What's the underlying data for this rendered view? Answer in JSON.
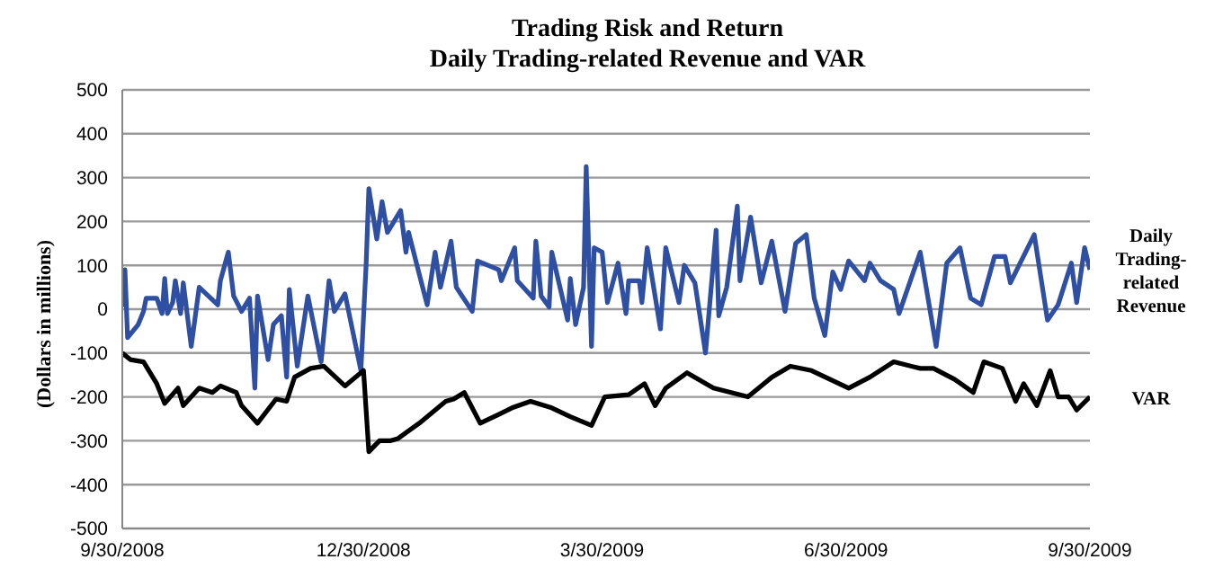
{
  "chart_data": {
    "type": "line",
    "title": "Trading Risk and Return",
    "subtitle": "Daily Trading-related Revenue and VAR",
    "ylabel": "(Dollars in millions)",
    "ylim": [
      -500,
      500
    ],
    "yticks": [
      -500,
      -400,
      -300,
      -200,
      -100,
      0,
      100,
      200,
      300,
      400,
      500
    ],
    "xlim": [
      "2008-09-30",
      "2009-09-30"
    ],
    "xticks": [
      {
        "value": "2008-09-30",
        "label": "9/30/2008"
      },
      {
        "value": "2008-12-30",
        "label": "12/30/2008"
      },
      {
        "value": "2009-03-30",
        "label": "3/30/2009"
      },
      {
        "value": "2009-06-30",
        "label": "6/30/2009"
      },
      {
        "value": "2009-09-30",
        "label": "9/30/2009"
      }
    ],
    "grid": "y",
    "marker": "none",
    "line_style": "solid",
    "series": [
      {
        "name": "Daily Trading-related Revenue",
        "color": "#2f4fa3",
        "x": [
          "2008-09-30",
          "2008-10-01",
          "2008-10-02",
          "2008-10-06",
          "2008-10-08",
          "2008-10-09",
          "2008-10-13",
          "2008-10-15",
          "2008-10-16",
          "2008-10-17",
          "2008-10-19",
          "2008-10-20",
          "2008-10-22",
          "2008-10-23",
          "2008-10-26",
          "2008-10-29",
          "2008-11-05",
          "2008-11-06",
          "2008-11-09",
          "2008-11-11",
          "2008-11-14",
          "2008-11-17",
          "2008-11-19",
          "2008-11-20",
          "2008-11-24",
          "2008-11-26",
          "2008-11-29",
          "2008-12-01",
          "2008-12-02",
          "2008-12-05",
          "2008-12-09",
          "2008-12-14",
          "2008-12-17",
          "2008-12-19",
          "2008-12-23",
          "2008-12-29",
          "2008-12-31",
          "2009-01-01",
          "2009-01-04",
          "2009-01-06",
          "2009-01-08",
          "2009-01-13",
          "2009-01-15",
          "2009-01-16",
          "2009-01-20",
          "2009-01-23",
          "2009-01-26",
          "2009-01-28",
          "2009-02-01",
          "2009-02-03",
          "2009-02-09",
          "2009-02-11",
          "2009-02-19",
          "2009-02-20",
          "2009-02-25",
          "2009-02-26",
          "2009-03-04",
          "2009-03-05",
          "2009-03-07",
          "2009-03-10",
          "2009-03-11",
          "2009-03-17",
          "2009-03-18",
          "2009-03-20",
          "2009-03-23",
          "2009-03-24",
          "2009-03-26",
          "2009-03-27",
          "2009-03-30",
          "2009-04-01",
          "2009-04-05",
          "2009-04-08",
          "2009-04-09",
          "2009-04-13",
          "2009-04-14",
          "2009-04-16",
          "2009-04-21",
          "2009-04-23",
          "2009-04-28",
          "2009-04-30",
          "2009-05-04",
          "2009-05-08",
          "2009-05-12",
          "2009-05-13",
          "2009-05-16",
          "2009-05-20",
          "2009-05-21",
          "2009-05-25",
          "2009-05-29",
          "2009-06-02",
          "2009-06-07",
          "2009-06-11",
          "2009-06-15",
          "2009-06-18",
          "2009-06-22",
          "2009-06-25",
          "2009-06-28",
          "2009-07-01",
          "2009-07-07",
          "2009-07-09",
          "2009-07-13",
          "2009-07-18",
          "2009-07-20",
          "2009-07-28",
          "2009-08-03",
          "2009-08-07",
          "2009-08-12",
          "2009-08-16",
          "2009-08-20",
          "2009-08-25",
          "2009-08-29",
          "2009-08-31",
          "2009-09-09",
          "2009-09-14",
          "2009-09-18",
          "2009-09-23",
          "2009-09-25",
          "2009-09-28",
          "2009-09-30"
        ],
        "values": [
          5,
          90,
          -65,
          -35,
          -5,
          25,
          25,
          -10,
          70,
          -10,
          15,
          65,
          -10,
          60,
          -85,
          50,
          10,
          65,
          130,
          30,
          -5,
          25,
          -180,
          30,
          -115,
          -35,
          -15,
          -155,
          45,
          -130,
          30,
          -120,
          65,
          -5,
          35,
          -140,
          105,
          275,
          160,
          245,
          175,
          225,
          130,
          175,
          80,
          10,
          130,
          50,
          155,
          50,
          -5,
          110,
          90,
          65,
          140,
          65,
          25,
          155,
          30,
          5,
          130,
          -25,
          70,
          -35,
          50,
          325,
          -85,
          140,
          130,
          15,
          105,
          -10,
          65,
          65,
          15,
          140,
          -45,
          140,
          15,
          100,
          60,
          -100,
          180,
          -15,
          50,
          235,
          65,
          210,
          60,
          155,
          -5,
          150,
          170,
          25,
          -60,
          85,
          45,
          110,
          65,
          105,
          65,
          45,
          -10,
          130,
          -85,
          105,
          140,
          25,
          10,
          120,
          120,
          60,
          170,
          -25,
          10,
          105,
          15,
          140,
          90
        ]
      },
      {
        "name": "VAR",
        "color": "#000000",
        "x": [
          "2008-09-30",
          "2008-10-03",
          "2008-10-08",
          "2008-10-13",
          "2008-10-16",
          "2008-10-21",
          "2008-10-23",
          "2008-10-29",
          "2008-11-03",
          "2008-11-06",
          "2008-11-12",
          "2008-11-14",
          "2008-11-20",
          "2008-11-27",
          "2008-12-01",
          "2008-12-04",
          "2008-12-10",
          "2008-12-15",
          "2008-12-23",
          "2008-12-30",
          "2009-01-01",
          "2009-01-05",
          "2009-01-09",
          "2009-01-12",
          "2009-01-20",
          "2009-01-30",
          "2009-02-02",
          "2009-02-06",
          "2009-02-12",
          "2009-02-19",
          "2009-02-24",
          "2009-03-03",
          "2009-03-11",
          "2009-03-18",
          "2009-03-26",
          "2009-03-31",
          "2009-04-09",
          "2009-04-15",
          "2009-04-19",
          "2009-04-23",
          "2009-05-01",
          "2009-05-11",
          "2009-05-24",
          "2009-06-02",
          "2009-06-09",
          "2009-06-17",
          "2009-07-01",
          "2009-07-09",
          "2009-07-18",
          "2009-07-28",
          "2009-08-02",
          "2009-08-10",
          "2009-08-17",
          "2009-08-21",
          "2009-08-28",
          "2009-09-02",
          "2009-09-05",
          "2009-09-10",
          "2009-09-15",
          "2009-09-18",
          "2009-09-22",
          "2009-09-25",
          "2009-09-30"
        ],
        "values": [
          -100,
          -115,
          -120,
          -170,
          -215,
          -180,
          -220,
          -180,
          -190,
          -175,
          -190,
          -220,
          -260,
          -205,
          -210,
          -155,
          -135,
          -130,
          -175,
          -140,
          -325,
          -300,
          -300,
          -295,
          -260,
          -210,
          -205,
          -190,
          -260,
          -240,
          -225,
          -210,
          -225,
          -245,
          -265,
          -200,
          -195,
          -170,
          -220,
          -180,
          -145,
          -180,
          -200,
          -155,
          -130,
          -140,
          -180,
          -155,
          -120,
          -135,
          -135,
          -160,
          -190,
          -120,
          -135,
          -210,
          -170,
          -220,
          -140,
          -200,
          -200,
          -230,
          -200
        ]
      }
    ]
  }
}
